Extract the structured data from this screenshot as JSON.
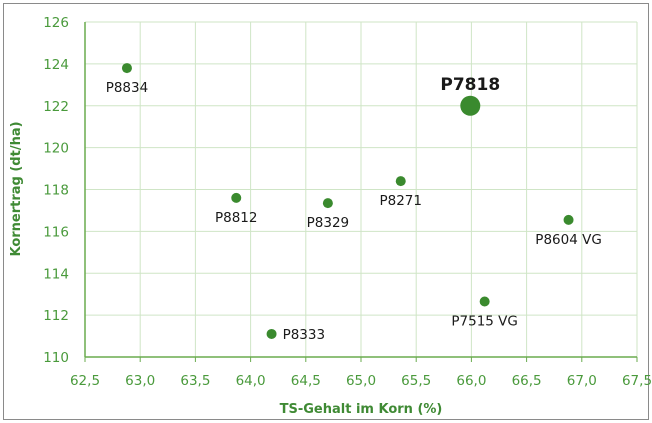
{
  "chart_data": {
    "type": "scatter",
    "xlabel": "TS-Gehalt im Korn (%)",
    "ylabel": "Kornertrag (dt/ha)",
    "xlim": [
      62.5,
      67.5
    ],
    "ylim": [
      110,
      126
    ],
    "x_ticks": [
      "62,5",
      "63,0",
      "63,5",
      "64,0",
      "64,5",
      "65,0",
      "65,5",
      "66,0",
      "66,5",
      "67,0",
      "67,5"
    ],
    "y_ticks": [
      "110",
      "112",
      "114",
      "116",
      "118",
      "120",
      "122",
      "124",
      "126"
    ],
    "grid": true,
    "colors": {
      "grid": "#cfe5c6",
      "axis": "#6aab4e",
      "point": "#3a8a2e",
      "text_axis": "#4a9a3c"
    },
    "points": [
      {
        "label": "P8834",
        "x": 62.88,
        "y": 123.8,
        "highlight": false,
        "label_pos": "below"
      },
      {
        "label": "P7818",
        "x": 65.99,
        "y": 122.0,
        "highlight": true,
        "label_pos": "above"
      },
      {
        "label": "P8812",
        "x": 63.87,
        "y": 117.6,
        "highlight": false,
        "label_pos": "below"
      },
      {
        "label": "P8329",
        "x": 64.7,
        "y": 117.35,
        "highlight": false,
        "label_pos": "below"
      },
      {
        "label": "P8271",
        "x": 65.36,
        "y": 118.4,
        "highlight": false,
        "label_pos": "below"
      },
      {
        "label": "P8604 VG",
        "x": 66.88,
        "y": 116.55,
        "highlight": false,
        "label_pos": "below"
      },
      {
        "label": "P7515 VG",
        "x": 66.12,
        "y": 112.65,
        "highlight": false,
        "label_pos": "below"
      },
      {
        "label": "P8333",
        "x": 64.19,
        "y": 111.1,
        "highlight": false,
        "label_pos": "right"
      }
    ]
  }
}
